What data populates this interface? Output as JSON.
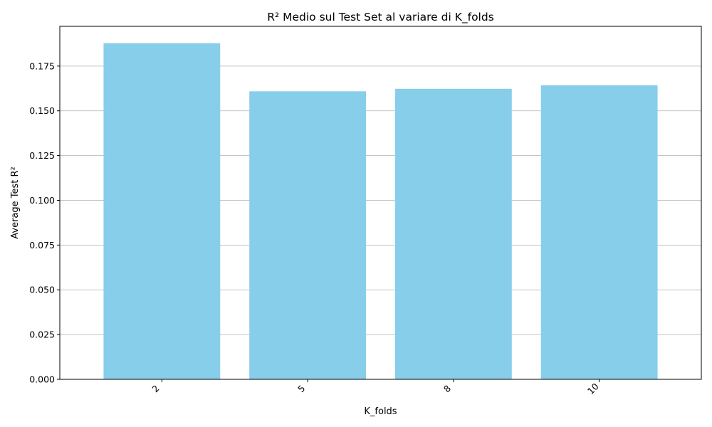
{
  "chart_data": {
    "type": "bar",
    "title": "R² Medio sul Test Set al variare di K_folds",
    "xlabel": "K_folds",
    "ylabel": "Average Test R²",
    "categories": [
      "2",
      "5",
      "8",
      "10"
    ],
    "values": [
      0.1878,
      0.1609,
      0.1623,
      0.1643
    ],
    "ylim": [
      0,
      0.1972
    ],
    "yticks": [
      "0.000",
      "0.025",
      "0.050",
      "0.075",
      "0.100",
      "0.125",
      "0.150",
      "0.175"
    ],
    "grid": "y",
    "bar_color": "#87CEEB",
    "xtick_rotation": -45
  }
}
